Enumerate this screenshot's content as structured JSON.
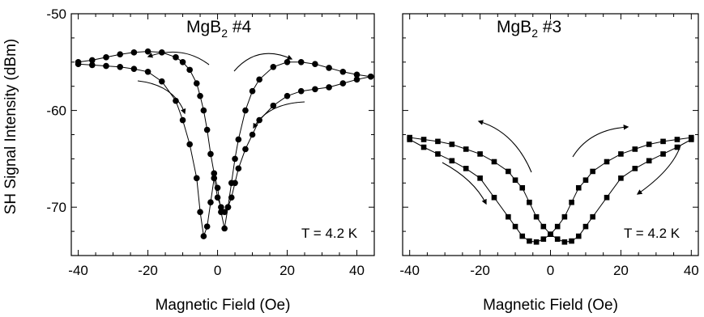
{
  "chart_data": [
    {
      "type": "scatter",
      "title": "MgB2 #4",
      "title_main": "MgB",
      "title_sub": "2",
      "title_rest": " #4",
      "xlabel": "Magnetic Field (Oe)",
      "ylabel": "SH Signal Intensity (dBm)",
      "xlim": [
        -42,
        45
      ],
      "ylim": [
        -75,
        -50
      ],
      "xticks": [
        -40,
        -20,
        0,
        20,
        40
      ],
      "yticks": [
        -50,
        -60,
        -70
      ],
      "annotation": "T = 4.2 K",
      "marker": "circle",
      "series": [
        {
          "x": [
            -40,
            -36,
            -32,
            -28,
            -24,
            -20,
            -16,
            -12,
            -10,
            -8,
            -6,
            -5,
            -4,
            -3,
            -2,
            -1,
            0,
            1,
            2,
            3,
            4,
            5,
            6,
            8,
            10,
            12,
            16,
            20,
            24,
            28,
            32,
            36,
            40,
            44
          ],
          "y": [
            -55.0,
            -54.8,
            -54.5,
            -54.2,
            -54.0,
            -53.9,
            -54.0,
            -54.5,
            -55.0,
            -55.8,
            -57.2,
            -58.5,
            -60.0,
            -62.0,
            -64.5,
            -66.5,
            -68.0,
            -70.5,
            -72.2,
            -70.0,
            -67.5,
            -65.0,
            -63.0,
            -60.0,
            -58.0,
            -56.8,
            -55.5,
            -55.0,
            -55.0,
            -55.2,
            -55.6,
            -56.0,
            -56.3,
            -56.5
          ]
        },
        {
          "x": [
            44,
            40,
            36,
            32,
            28,
            24,
            20,
            16,
            12,
            10,
            8,
            6,
            5,
            4,
            3,
            2,
            1,
            0,
            -1,
            -2,
            -3,
            -4,
            -5,
            -6,
            -8,
            -10,
            -12,
            -16,
            -20,
            -24,
            -28,
            -32,
            -36,
            -40
          ],
          "y": [
            -56.5,
            -56.8,
            -57.2,
            -57.6,
            -57.8,
            -58.0,
            -58.5,
            -59.5,
            -61.0,
            -62.5,
            -64.0,
            -66.0,
            -67.5,
            -69.0,
            -70.0,
            -70.5,
            -70.0,
            -69.0,
            -67.0,
            -69.5,
            -72.0,
            -73.0,
            -70.5,
            -67.0,
            -63.5,
            -61.0,
            -59.0,
            -57.0,
            -56.0,
            -55.7,
            -55.5,
            -55.4,
            -55.3,
            -55.2
          ]
        }
      ]
    },
    {
      "type": "scatter",
      "title": "MgB2 #3",
      "title_main": "MgB",
      "title_sub": "2",
      "title_rest": " #3",
      "xlabel": "Magnetic Field (Oe)",
      "xlim": [
        -42,
        42
      ],
      "ylim": [
        -75,
        -50
      ],
      "xticks": [
        -40,
        -20,
        0,
        20,
        40
      ],
      "annotation": "T = 4.2 K",
      "marker": "square",
      "series": [
        {
          "x": [
            -40,
            -36,
            -32,
            -28,
            -24,
            -20,
            -16,
            -12,
            -10,
            -8,
            -6,
            -4,
            -2,
            0,
            2,
            4,
            6,
            8,
            10,
            12,
            16,
            20,
            24,
            28,
            32,
            36,
            40
          ],
          "y": [
            -62.8,
            -63.0,
            -63.2,
            -63.5,
            -64.0,
            -64.5,
            -65.3,
            -66.3,
            -67.2,
            -68.0,
            -69.5,
            -71.0,
            -72.0,
            -72.8,
            -73.3,
            -73.6,
            -73.5,
            -73.0,
            -72.0,
            -71.0,
            -69.0,
            -67.0,
            -66.0,
            -65.2,
            -64.5,
            -63.8,
            -63.0
          ]
        },
        {
          "x": [
            40,
            36,
            32,
            28,
            24,
            20,
            16,
            12,
            10,
            8,
            6,
            4,
            2,
            0,
            -2,
            -4,
            -6,
            -8,
            -10,
            -12,
            -16,
            -20,
            -24,
            -28,
            -32,
            -36,
            -40
          ],
          "y": [
            -62.8,
            -63.0,
            -63.2,
            -63.5,
            -64.0,
            -64.5,
            -65.3,
            -66.3,
            -67.2,
            -68.0,
            -69.5,
            -71.0,
            -72.0,
            -72.8,
            -73.3,
            -73.6,
            -73.5,
            -73.0,
            -72.0,
            -71.0,
            -69.0,
            -67.0,
            -66.0,
            -65.2,
            -64.5,
            -63.8,
            -63.0
          ]
        }
      ]
    }
  ]
}
